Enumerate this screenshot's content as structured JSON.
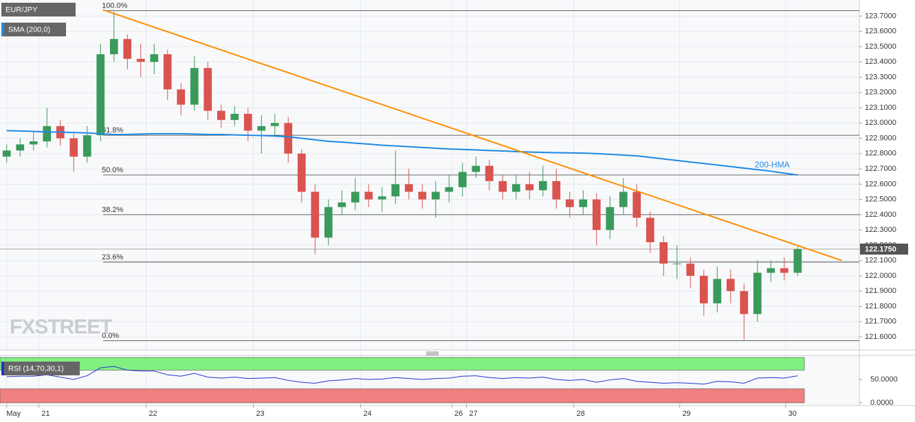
{
  "chart_data": {
    "type": "candlestick",
    "title": "EUR/JPY",
    "x": [
      0,
      1,
      2,
      3,
      4,
      5,
      6,
      7,
      8,
      9,
      10,
      11,
      12,
      13,
      14,
      15,
      16,
      17,
      18,
      19,
      20,
      21,
      22,
      23,
      24,
      25,
      26,
      27,
      28,
      29,
      30,
      31,
      32,
      33,
      34,
      35,
      36,
      37,
      38,
      39,
      40,
      41,
      42,
      43,
      44,
      45,
      46,
      47,
      48,
      49,
      50,
      51,
      52,
      53,
      54,
      55,
      56,
      57,
      58,
      59
    ],
    "open": [
      122.78,
      122.82,
      122.86,
      122.88,
      122.98,
      122.9,
      122.78,
      122.92,
      123.45,
      123.55,
      123.42,
      123.4,
      123.45,
      123.22,
      123.12,
      123.36,
      123.08,
      123.02,
      123.06,
      122.95,
      122.98,
      123.0,
      122.8,
      122.55,
      122.25,
      122.45,
      122.48,
      122.55,
      122.5,
      122.52,
      122.6,
      122.55,
      122.5,
      122.55,
      122.58,
      122.68,
      122.72,
      122.62,
      122.55,
      122.6,
      122.56,
      122.62,
      122.5,
      122.45,
      122.5,
      122.3,
      122.45,
      122.55,
      122.38,
      122.22,
      122.08,
      122.08,
      122.0,
      121.82,
      121.98,
      121.9,
      121.75,
      122.02,
      122.05,
      122.02
    ],
    "high": [
      122.86,
      122.9,
      122.94,
      123.1,
      123.02,
      122.93,
      122.98,
      123.52,
      123.73,
      123.58,
      123.52,
      123.52,
      123.48,
      123.26,
      123.44,
      123.4,
      123.12,
      123.11,
      123.1,
      123.05,
      123.06,
      123.04,
      122.83,
      122.6,
      122.5,
      122.56,
      122.64,
      122.6,
      122.58,
      122.82,
      122.7,
      122.6,
      122.62,
      122.66,
      122.74,
      122.78,
      122.76,
      122.66,
      122.66,
      122.68,
      122.72,
      122.7,
      122.55,
      122.56,
      122.54,
      122.52,
      122.64,
      122.6,
      122.42,
      122.26,
      122.2,
      122.12,
      122.04,
      122.06,
      122.04,
      121.95,
      122.1,
      122.1,
      122.12,
      122.19
    ],
    "low": [
      122.74,
      122.78,
      122.82,
      122.84,
      122.85,
      122.68,
      122.74,
      122.88,
      123.4,
      123.35,
      123.3,
      123.32,
      123.15,
      123.05,
      123.08,
      123.02,
      122.97,
      122.98,
      122.88,
      122.8,
      122.92,
      122.74,
      122.48,
      122.14,
      122.2,
      122.4,
      122.43,
      122.45,
      122.42,
      122.47,
      122.5,
      122.44,
      122.38,
      122.48,
      122.52,
      122.64,
      122.56,
      122.5,
      122.5,
      122.5,
      122.52,
      122.44,
      122.38,
      122.4,
      122.2,
      122.24,
      122.4,
      122.32,
      122.15,
      122.0,
      121.98,
      121.92,
      121.74,
      121.76,
      121.82,
      121.58,
      121.7,
      121.96,
      121.97,
      122.0
    ],
    "close": [
      122.82,
      122.86,
      122.88,
      122.98,
      122.9,
      122.78,
      122.92,
      123.45,
      123.55,
      123.42,
      123.4,
      123.45,
      123.22,
      123.12,
      123.36,
      123.08,
      123.02,
      123.06,
      122.95,
      122.98,
      123.0,
      122.8,
      122.55,
      122.25,
      122.45,
      122.48,
      122.55,
      122.5,
      122.52,
      122.6,
      122.55,
      122.5,
      122.55,
      122.58,
      122.68,
      122.72,
      122.62,
      122.55,
      122.6,
      122.56,
      122.62,
      122.5,
      122.45,
      122.5,
      122.3,
      122.45,
      122.55,
      122.38,
      122.22,
      122.08,
      122.08,
      122.0,
      121.82,
      121.98,
      121.9,
      121.75,
      122.02,
      122.05,
      122.02,
      122.175
    ],
    "up_color": "#3a9a5b",
    "down_color": "#d9534f",
    "series": [
      {
        "name": "SMA (200,0)",
        "color": "#1e88e5",
        "values": [
          122.95,
          122.948,
          122.945,
          122.942,
          122.94,
          122.938,
          122.935,
          122.93,
          122.925,
          122.925,
          122.928,
          122.93,
          122.93,
          122.93,
          122.928,
          122.925,
          122.925,
          122.922,
          122.92,
          122.918,
          122.915,
          122.91,
          122.9,
          122.89,
          122.88,
          122.875,
          122.868,
          122.862,
          122.855,
          122.85,
          122.845,
          122.84,
          122.835,
          122.83,
          122.827,
          122.824,
          122.82,
          122.817,
          122.813,
          122.81,
          122.808,
          122.806,
          122.805,
          122.803,
          122.8,
          122.795,
          122.79,
          122.785,
          122.775,
          122.765,
          122.755,
          122.745,
          122.735,
          122.725,
          122.715,
          122.705,
          122.695,
          122.685,
          122.672,
          122.66
        ]
      }
    ],
    "xlim": [
      -0.5,
      63.6
    ],
    "ylim": [
      121.515,
      123.805
    ],
    "grid": true,
    "yticks": [
      {
        "value": 121.6,
        "label": "121.6000"
      },
      {
        "value": 121.7,
        "label": "121.7000"
      },
      {
        "value": 121.8,
        "label": "121.8000"
      },
      {
        "value": 121.9,
        "label": "121.9000"
      },
      {
        "value": 122.0,
        "label": "122.0000"
      },
      {
        "value": 122.1,
        "label": "122.1000"
      },
      {
        "value": 122.2,
        "label": "122.2000"
      },
      {
        "value": 122.3,
        "label": "122.3000"
      },
      {
        "value": 122.4,
        "label": "122.4000"
      },
      {
        "value": 122.5,
        "label": "122.5000"
      },
      {
        "value": 122.6,
        "label": "122.6000"
      },
      {
        "value": 122.7,
        "label": "122.7000"
      },
      {
        "value": 122.8,
        "label": "122.8000"
      },
      {
        "value": 122.9,
        "label": "122.9000"
      },
      {
        "value": 123.0,
        "label": "123.0000"
      },
      {
        "value": 123.1,
        "label": "123.1000"
      },
      {
        "value": 123.2,
        "label": "123.2000"
      },
      {
        "value": 123.3,
        "label": "123.3000"
      },
      {
        "value": 123.4,
        "label": "123.4000"
      },
      {
        "value": 123.5,
        "label": "123.5000"
      },
      {
        "value": 123.6,
        "label": "123.6000"
      },
      {
        "value": 123.7,
        "label": "123.7000"
      }
    ],
    "xticks": [
      {
        "value": 0,
        "label": "May"
      },
      {
        "value": 2.4,
        "label": "21"
      },
      {
        "value": 10.4,
        "label": "22"
      },
      {
        "value": 18.4,
        "label": "23"
      },
      {
        "value": 26.4,
        "label": "24"
      },
      {
        "value": 33.2,
        "label": "26"
      },
      {
        "value": 34.3,
        "label": "27"
      },
      {
        "value": 42.3,
        "label": "28"
      },
      {
        "value": 50.2,
        "label": "29"
      },
      {
        "value": 58.1,
        "label": "30"
      }
    ],
    "price": {
      "value": 122.175,
      "label": "122.1750"
    },
    "fibonacci": [
      {
        "label": "100.0%",
        "value": 123.735
      },
      {
        "label": "61.8%",
        "value": 122.92
      },
      {
        "label": "50.0%",
        "value": 122.66
      },
      {
        "label": "38.2%",
        "value": 122.4
      },
      {
        "label": "23.6%",
        "value": 122.09
      },
      {
        "label": "0.0%",
        "value": 121.575
      }
    ],
    "trendline": {
      "x": [
        7.2,
        62.3
      ],
      "y": [
        123.74,
        122.1
      ],
      "color": "#ff8c00"
    },
    "annotations": [
      {
        "text": "200-HMA",
        "x": 55.8,
        "y": 122.723
      }
    ],
    "watermark": "FXSTREET",
    "rsi": {
      "name": "RSI (14,70,30,1)",
      "color": "#2233cc",
      "values": [
        56,
        57,
        57,
        60,
        55,
        50,
        58,
        75,
        78,
        70,
        68,
        68,
        60,
        57,
        63,
        55,
        53,
        55,
        52,
        53,
        54,
        48,
        44,
        42,
        47,
        49,
        52,
        50,
        51,
        54,
        52,
        50,
        52,
        53,
        57,
        58,
        54,
        52,
        54,
        53,
        55,
        50,
        48,
        50,
        44,
        49,
        52,
        46,
        44,
        42,
        43,
        42,
        40,
        46,
        45,
        42,
        53,
        54,
        53,
        58
      ],
      "ylim": [
        -4.4,
        101.5
      ],
      "yticks": [
        {
          "value": 0,
          "label": "0.0000"
        },
        {
          "value": 50,
          "label": "50.0000"
        }
      ],
      "overbought": 70,
      "oversold": 30
    }
  }
}
